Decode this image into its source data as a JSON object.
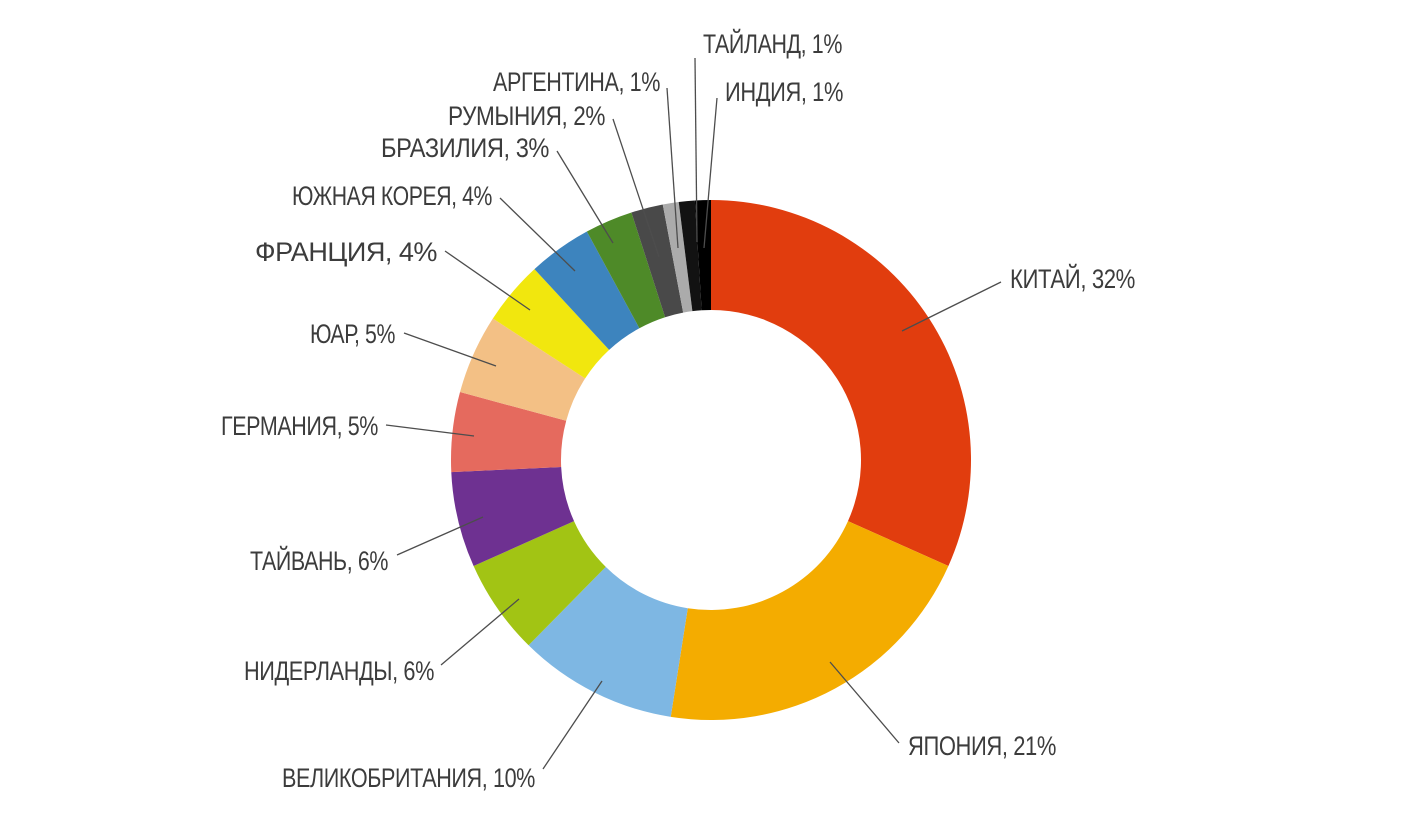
{
  "chart_data": {
    "type": "pie",
    "subtype": "donut",
    "unit": "%",
    "start_angle_deg": 0,
    "direction": "clockwise",
    "legend_position": "outside-labels-with-leader-lines",
    "background_color": "#FFFFFF",
    "label_color": "#3C3C3C",
    "leader_line_color": "#4D4D4D",
    "segments": [
      {
        "id": "china",
        "label": "КИТАЙ",
        "value": 32,
        "display": "КИТАЙ, 32%",
        "color": "#E13D0E"
      },
      {
        "id": "japan",
        "label": "ЯПОНИЯ",
        "value": 21,
        "display": "ЯПОНИЯ, 21%",
        "color": "#F4AC00"
      },
      {
        "id": "united-kingdom",
        "label": "ВЕЛИКОБРИТАНИЯ",
        "value": 10,
        "display": "ВЕЛИКОБРИТАНИЯ, 10%",
        "color": "#7EB7E3"
      },
      {
        "id": "netherlands",
        "label": "НИДЕРЛАНДЫ",
        "value": 6,
        "display": "НИДЕРЛАНДЫ, 6%",
        "color": "#A2C414"
      },
      {
        "id": "taiwan",
        "label": "ТАЙВАНЬ",
        "value": 6,
        "display": "ТАЙВАНЬ, 6%",
        "color": "#6E3191"
      },
      {
        "id": "germany",
        "label": "ГЕРМАНИЯ",
        "value": 5,
        "display": "ГЕРМАНИЯ, 5%",
        "color": "#E56A5E"
      },
      {
        "id": "south-africa",
        "label": "ЮАР",
        "value": 5,
        "display": "ЮАР, 5%",
        "color": "#F3C085"
      },
      {
        "id": "france",
        "label": "ФРАНЦИЯ",
        "value": 4,
        "display": "ФРАНЦИЯ, 4%",
        "color": "#F1E70E"
      },
      {
        "id": "south-korea",
        "label": "ЮЖНАЯ КОРЕЯ",
        "value": 4,
        "display": "ЮЖНАЯ КОРЕЯ, 4%",
        "color": "#3D84BE"
      },
      {
        "id": "brazil",
        "label": "БРАЗИЛИЯ",
        "value": 3,
        "display": "БРАЗИЛИЯ, 3%",
        "color": "#4E8A28"
      },
      {
        "id": "romania",
        "label": "РУМЫНИЯ",
        "value": 2,
        "display": "РУМЫНИЯ, 2%",
        "color": "#494949"
      },
      {
        "id": "argentina",
        "label": "АРГЕНТИНА",
        "value": 1,
        "display": "АРГЕНТИНА, 1%",
        "color": "#ABABAB"
      },
      {
        "id": "thailand",
        "label": "ТАЙЛАНД",
        "value": 1,
        "display": "ТАЙЛАНД, 1%",
        "color": "#121212"
      },
      {
        "id": "india",
        "label": "ИНДИЯ",
        "value": 1,
        "display": "ИНДИЯ, 1%",
        "color": "#000000"
      }
    ]
  }
}
